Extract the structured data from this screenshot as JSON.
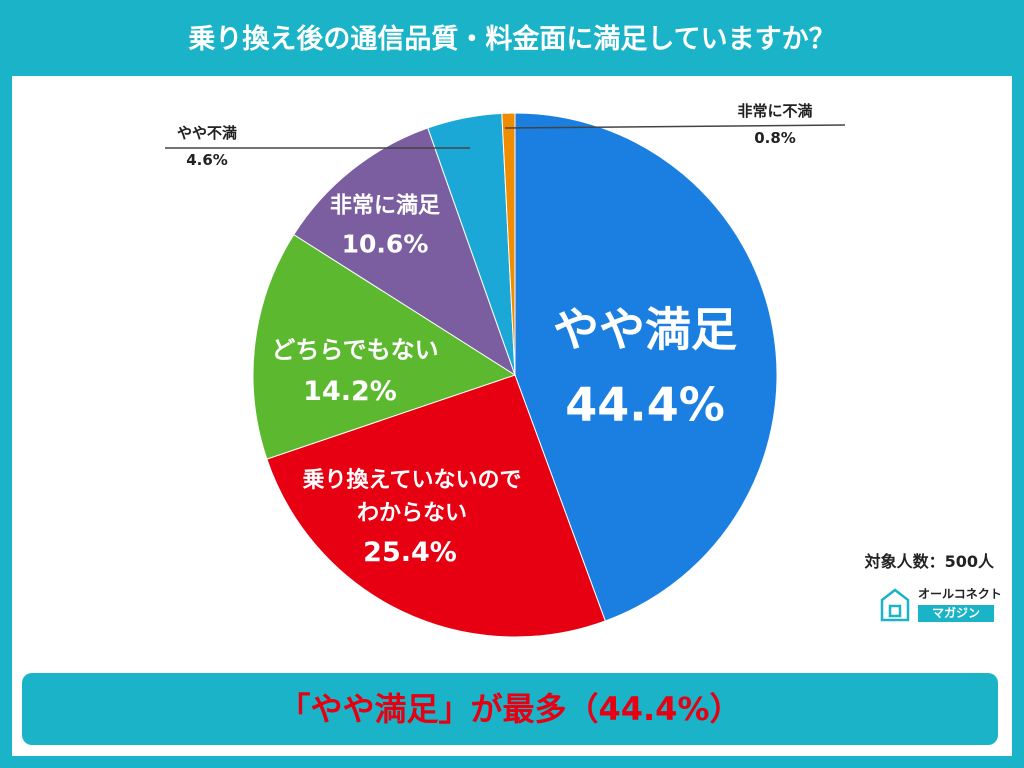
{
  "chart_data": {
    "type": "pie",
    "title": "乗り換え後の通信品質・料金面に満足していますか？",
    "categories": [
      "やや満足",
      "乗り換えていないのでわからない",
      "どちらでもない",
      "非常に満足",
      "やや不満",
      "非常に不満"
    ],
    "values": [
      44.4,
      25.4,
      14.2,
      10.6,
      4.6,
      0.8
    ],
    "value_labels": [
      "44.4%",
      "25.4%",
      "14.2%",
      "10.6%",
      "4.6%",
      "0.8%"
    ],
    "colors": [
      "#1a7fe0",
      "#e60012",
      "#5cb82e",
      "#7b5ea0",
      "#1ba8d6",
      "#f08c00"
    ],
    "sample_size": "対象人数：500人",
    "summary": "「やや満足」が最多（44.4%）"
  },
  "logo": {
    "name": "オールコネクト",
    "sub": "マガジン"
  }
}
